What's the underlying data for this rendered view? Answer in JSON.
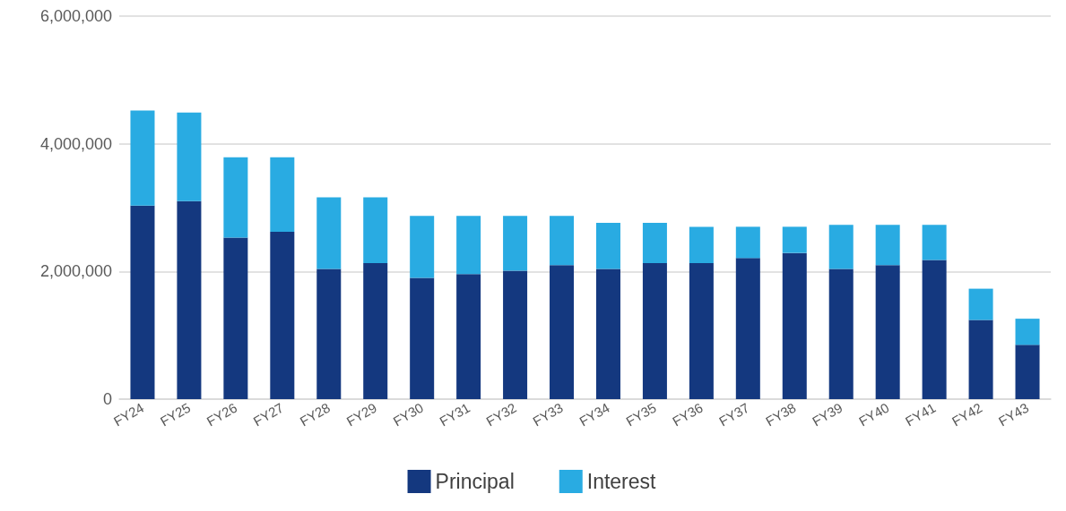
{
  "chart_data": {
    "type": "bar",
    "stacked": true,
    "categories": [
      "FY24",
      "FY25",
      "FY26",
      "FY27",
      "FY28",
      "FY29",
      "FY30",
      "FY31",
      "FY32",
      "FY33",
      "FY34",
      "FY35",
      "FY36",
      "FY37",
      "FY38",
      "FY39",
      "FY40",
      "FY41",
      "FY42",
      "FY43"
    ],
    "series": [
      {
        "name": "Principal",
        "color": "#14387f",
        "values": [
          3030000,
          3100000,
          2530000,
          2620000,
          2040000,
          2130000,
          1900000,
          1960000,
          2010000,
          2100000,
          2040000,
          2130000,
          2130000,
          2210000,
          2290000,
          2040000,
          2100000,
          2180000,
          1240000,
          850000
        ]
      },
      {
        "name": "Interest",
        "color": "#29abe2",
        "values": [
          1490000,
          1390000,
          1260000,
          1170000,
          1120000,
          1030000,
          970000,
          910000,
          860000,
          770000,
          720000,
          630000,
          570000,
          490000,
          410000,
          690000,
          630000,
          550000,
          490000,
          410000
        ]
      }
    ],
    "ylim": [
      0,
      6000000
    ],
    "yticks": [
      0,
      {
        "value": 2000000,
        "label": "2,000,000"
      },
      {
        "value": 4000000,
        "label": "4,000,000"
      },
      {
        "value": 6000000,
        "label": "6,000,000"
      }
    ],
    "grid": "y",
    "legend": "bottom"
  }
}
